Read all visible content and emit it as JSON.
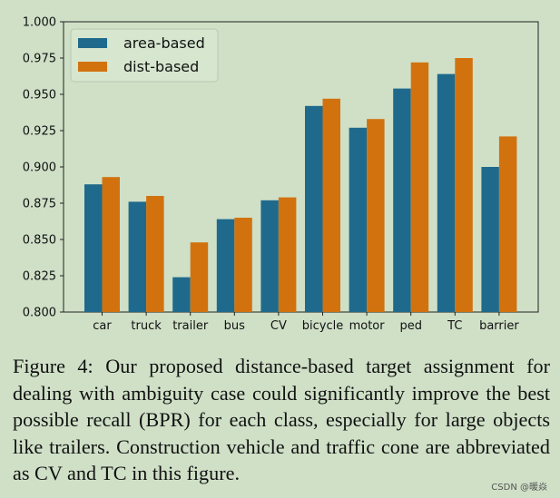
{
  "chart_data": {
    "type": "bar",
    "categories": [
      "car",
      "truck",
      "trailer",
      "bus",
      "CV",
      "bicycle",
      "motor",
      "ped",
      "TC",
      "barrier"
    ],
    "series": [
      {
        "name": "area-based",
        "color": "#1f6a8c",
        "values": [
          0.888,
          0.876,
          0.824,
          0.864,
          0.877,
          0.942,
          0.927,
          0.954,
          0.964,
          0.9
        ]
      },
      {
        "name": "dist-based",
        "color": "#d2720f",
        "values": [
          0.893,
          0.88,
          0.848,
          0.865,
          0.879,
          0.947,
          0.933,
          0.972,
          0.975,
          0.921
        ]
      }
    ],
    "ylim": [
      0.8,
      1.0
    ],
    "yticks": [
      "0.800",
      "0.825",
      "0.850",
      "0.875",
      "0.900",
      "0.925",
      "0.950",
      "0.975",
      "1.000"
    ],
    "title": "",
    "xlabel": "",
    "ylabel": "",
    "legend": "top-left"
  },
  "caption": "Figure 4: Our proposed distance-based target assignment for dealing with ambiguity case could significantly improve the best possible recall (BPR) for each class, especially for large objects like trailers. Construction vehicle and traffic cone are abbreviated as CV and TC in this figure.",
  "watermark": "CSDN @暖焱"
}
